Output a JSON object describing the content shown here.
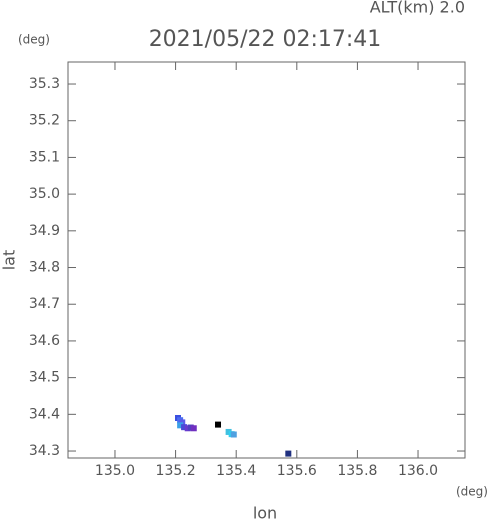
{
  "chart_data": {
    "type": "scatter",
    "title": "2021/05/22 02:17:41",
    "subtitle": "ALT(km) 2.0",
    "x_label": "lon",
    "y_label": "lat",
    "x_unit": "(deg)",
    "y_unit": "(deg)",
    "x": [
      135.208,
      135.215,
      135.222,
      135.215,
      135.228,
      135.24,
      135.25,
      135.26,
      135.375,
      135.385,
      135.392,
      135.34,
      135.572
    ],
    "y": [
      34.39,
      34.384,
      34.378,
      34.37,
      34.365,
      34.362,
      34.364,
      34.362,
      34.352,
      34.346,
      34.345,
      34.372,
      34.293
    ],
    "colors": [
      "#3b4fe0",
      "#4a6cf0",
      "#5a5ae8",
      "#3aa0e8",
      "#4a4ad8",
      "#6a3ad0",
      "#5040c0",
      "#7030c0",
      "#40c0e0",
      "#30d0f0",
      "#50a0e0",
      "#000000",
      "#203080"
    ],
    "xlim": [
      134.845,
      136.155
    ],
    "ylim": [
      34.281,
      35.36
    ],
    "xticks": [
      {
        "value": 135,
        "label": "135.0"
      },
      135.2,
      135.4,
      135.6,
      135.8,
      {
        "value": 136,
        "label": "136.0"
      }
    ],
    "yticks": [
      34.3,
      34.4,
      34.5,
      34.6,
      34.7,
      34.8,
      34.9,
      {
        "value": 35,
        "label": "35.0"
      },
      35.1,
      35.2,
      35.3
    ]
  }
}
